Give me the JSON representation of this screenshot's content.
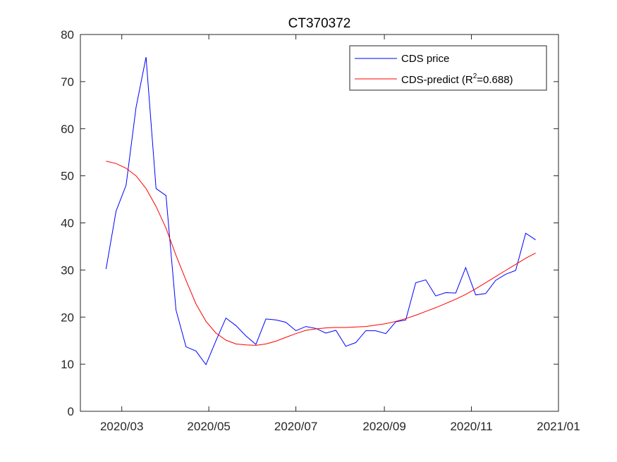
{
  "chart_data": {
    "type": "line",
    "title": "CT370372",
    "xlabel": "",
    "ylabel": "",
    "xlim": [
      "2020-02-01",
      "2021-01-01"
    ],
    "ylim": [
      0,
      80
    ],
    "x_ticks": [
      "2020-03-01",
      "2020-05-01",
      "2020-07-01",
      "2020-09-01",
      "2020-11-01",
      "2021-01-01"
    ],
    "x_tick_labels": [
      "2020/03",
      "2020/05",
      "2020/07",
      "2020/09",
      "2020/11",
      "2021/01"
    ],
    "y_ticks": [
      0,
      10,
      20,
      30,
      40,
      50,
      60,
      70,
      80
    ],
    "grid": false,
    "legend_position": "top-right",
    "colors": {
      "actual": "#0000ff",
      "predict": "#ff0000",
      "axis": "#262626"
    },
    "series": [
      {
        "name": "CDS price",
        "x": [
          "2020-02-19",
          "2020-02-26",
          "2020-03-04",
          "2020-03-11",
          "2020-03-18",
          "2020-03-25",
          "2020-04-01",
          "2020-04-08",
          "2020-04-15",
          "2020-04-22",
          "2020-04-29",
          "2020-05-06",
          "2020-05-13",
          "2020-05-20",
          "2020-05-27",
          "2020-06-03",
          "2020-06-10",
          "2020-06-17",
          "2020-06-24",
          "2020-07-01",
          "2020-07-08",
          "2020-07-15",
          "2020-07-22",
          "2020-07-29",
          "2020-08-05",
          "2020-08-12",
          "2020-08-19",
          "2020-08-26",
          "2020-09-02",
          "2020-09-09",
          "2020-09-16",
          "2020-09-23",
          "2020-09-30",
          "2020-10-07",
          "2020-10-14",
          "2020-10-21",
          "2020-10-28",
          "2020-11-04",
          "2020-11-11",
          "2020-11-18",
          "2020-11-25",
          "2020-12-02",
          "2020-12-09",
          "2020-12-16"
        ],
        "values": [
          30.2,
          42.5,
          48.0,
          64.5,
          75.2,
          47.3,
          45.8,
          21.5,
          13.7,
          12.8,
          9.9,
          15.0,
          19.8,
          18.2,
          16.0,
          14.2,
          19.6,
          19.4,
          18.9,
          17.1,
          18.0,
          17.6,
          16.6,
          17.2,
          13.8,
          14.6,
          17.1,
          17.1,
          16.5,
          19.0,
          19.4,
          27.3,
          27.9,
          24.5,
          25.2,
          25.1,
          30.5,
          24.7,
          25.0,
          27.8,
          29.1,
          29.9,
          37.8,
          36.4
        ]
      },
      {
        "name": "CDS-predict (R²=0.688)",
        "x": [
          "2020-02-19",
          "2020-02-26",
          "2020-03-04",
          "2020-03-11",
          "2020-03-18",
          "2020-03-25",
          "2020-04-01",
          "2020-04-08",
          "2020-04-15",
          "2020-04-22",
          "2020-04-29",
          "2020-05-06",
          "2020-05-13",
          "2020-05-20",
          "2020-05-27",
          "2020-06-03",
          "2020-06-10",
          "2020-06-17",
          "2020-06-24",
          "2020-07-01",
          "2020-07-08",
          "2020-07-15",
          "2020-07-22",
          "2020-07-29",
          "2020-08-05",
          "2020-08-12",
          "2020-08-19",
          "2020-08-26",
          "2020-09-02",
          "2020-09-09",
          "2020-09-16",
          "2020-09-23",
          "2020-09-30",
          "2020-10-07",
          "2020-10-14",
          "2020-10-21",
          "2020-10-28",
          "2020-11-04",
          "2020-11-11",
          "2020-11-18",
          "2020-11-25",
          "2020-12-02",
          "2020-12-09",
          "2020-12-16"
        ],
        "values": [
          53.1,
          52.6,
          51.6,
          50.0,
          47.3,
          43.5,
          38.9,
          33.1,
          27.8,
          22.8,
          19.1,
          16.6,
          15.1,
          14.3,
          14.1,
          14.0,
          14.3,
          14.9,
          15.7,
          16.5,
          17.2,
          17.5,
          17.7,
          17.8,
          17.8,
          17.9,
          18.0,
          18.3,
          18.6,
          19.1,
          19.7,
          20.4,
          21.2,
          22.0,
          22.9,
          23.8,
          24.8,
          26.0,
          27.3,
          28.6,
          29.9,
          31.2,
          32.5,
          33.6
        ]
      }
    ],
    "legend": {
      "entries": [
        {
          "label": "CDS price"
        },
        {
          "label_prefix": "CDS-predict (R",
          "label_sup": "2",
          "label_suffix": "=0.688)"
        }
      ]
    }
  }
}
